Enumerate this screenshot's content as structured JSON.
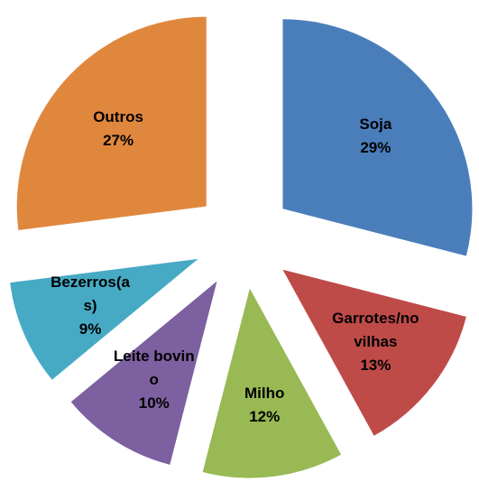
{
  "chart_data": {
    "type": "pie",
    "categories": [
      "Soja",
      "Garrotes/novilhas",
      "Milho",
      "Leite bovino",
      "Bezerros(as)",
      "Outros"
    ],
    "values": [
      29,
      13,
      12,
      10,
      9,
      27
    ],
    "value_labels": [
      "29%",
      "13%",
      "12%",
      "10%",
      "9%",
      "27%"
    ],
    "colors": [
      "#4a7ebb",
      "#be4b48",
      "#98b954",
      "#7d60a0",
      "#46aac5",
      "#e0873e"
    ]
  }
}
